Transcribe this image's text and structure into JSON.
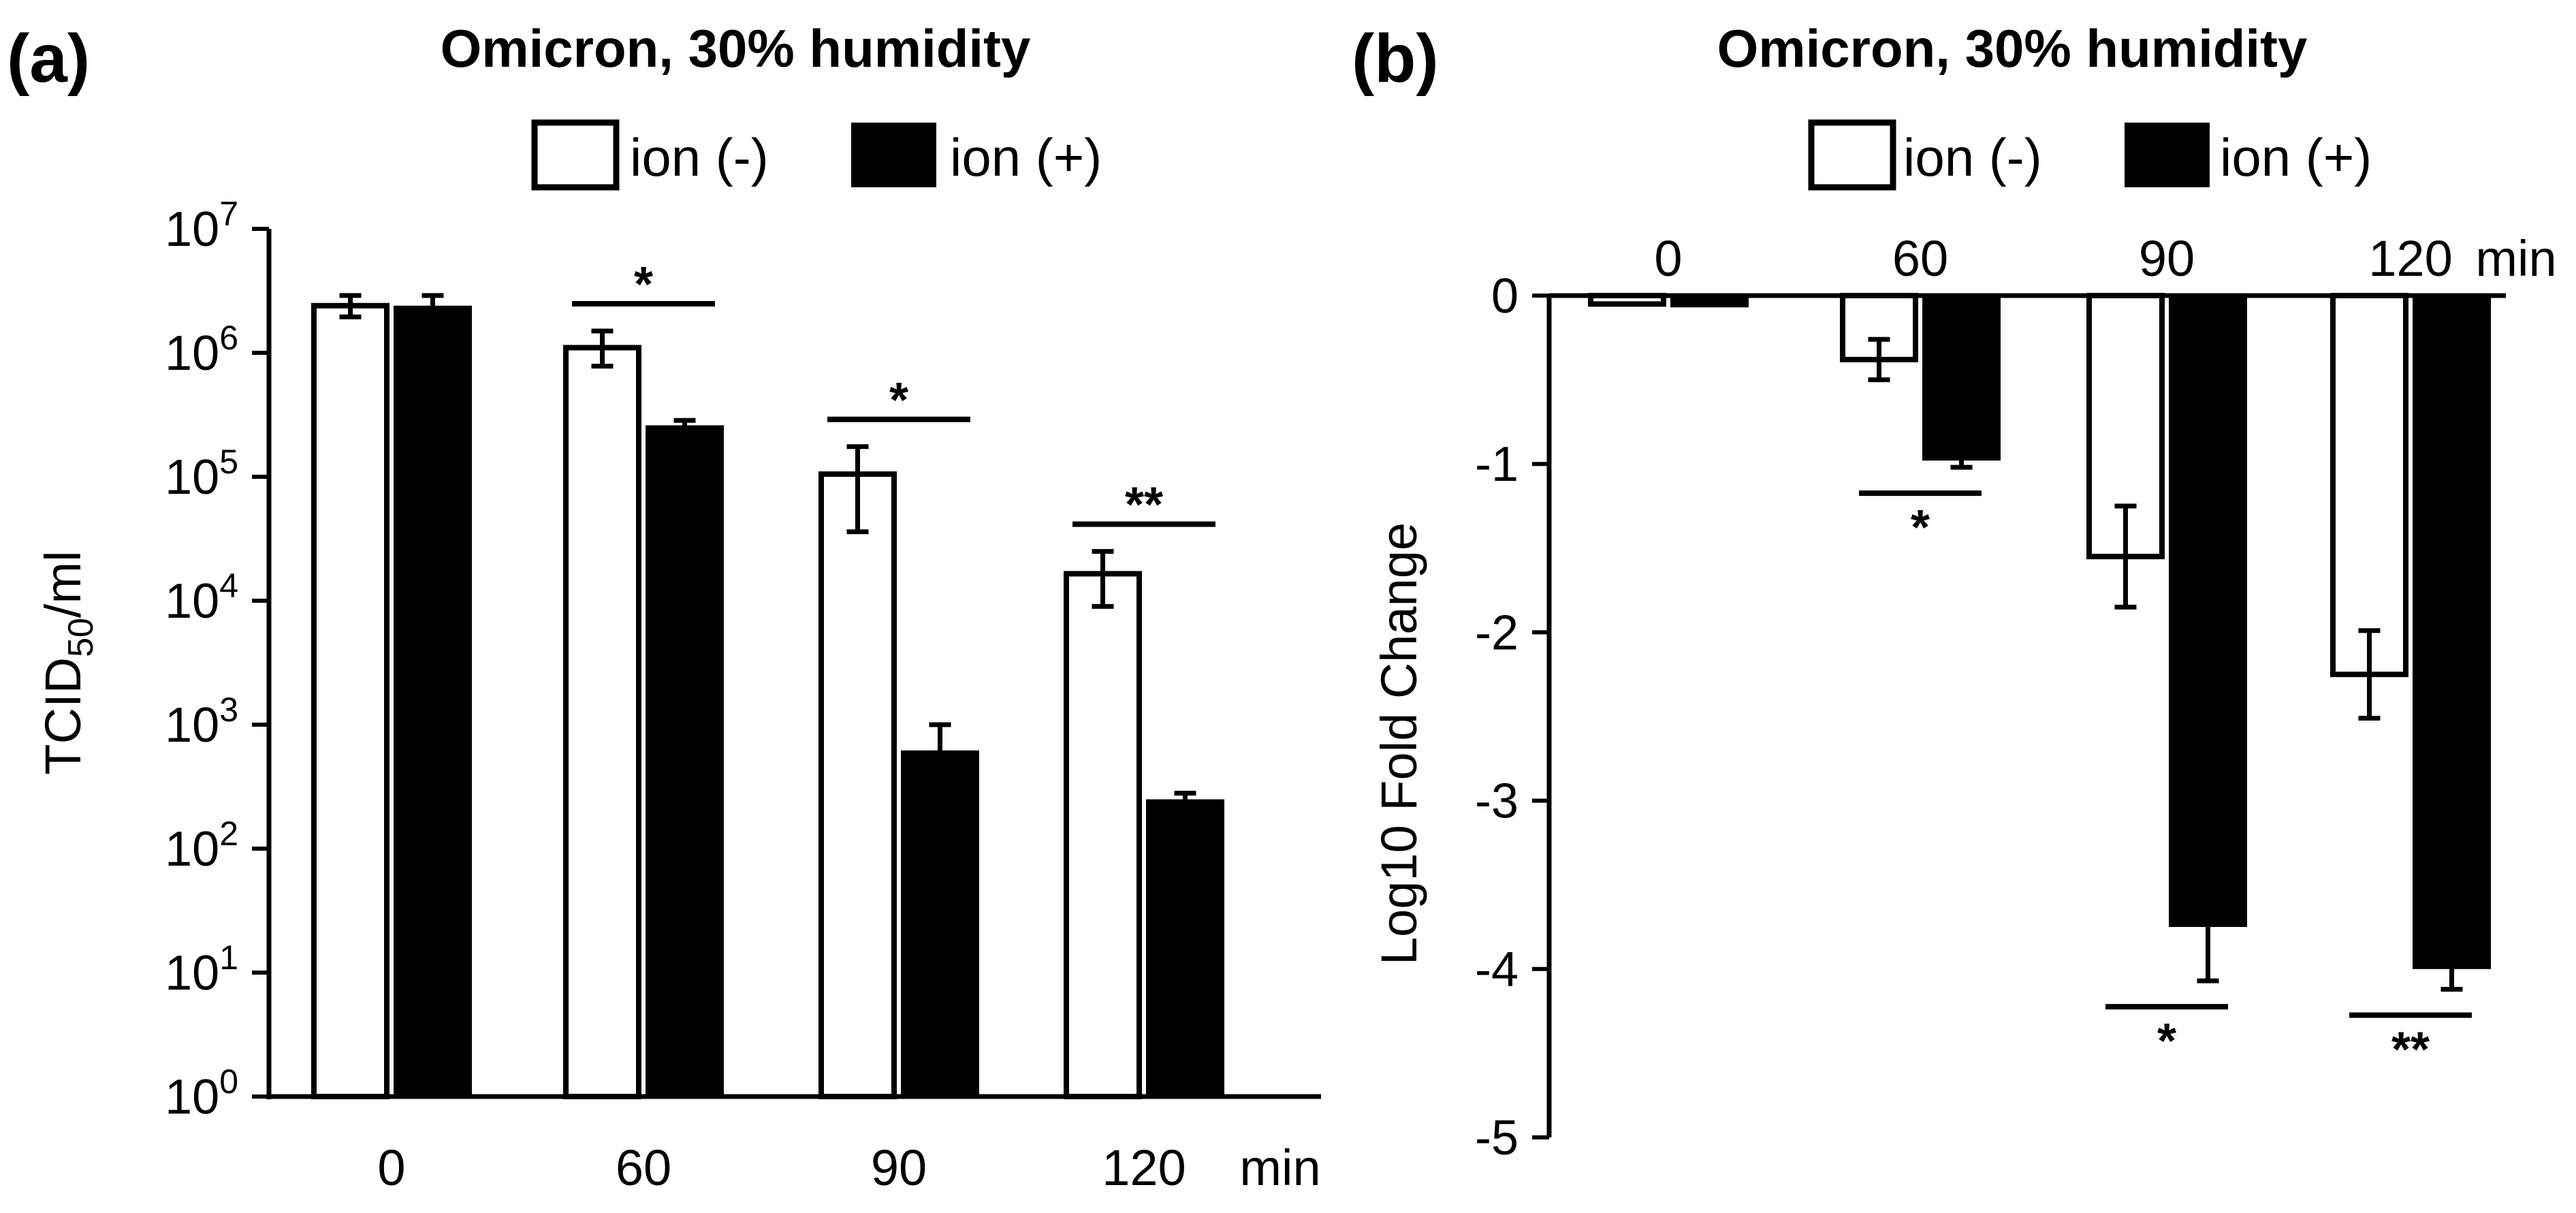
{
  "panels": [
    {
      "label": "(a)",
      "title": "Omicron, 30% humidity",
      "legend": {
        "off_label": "ion (-)",
        "on_label": "ion (+)"
      }
    },
    {
      "label": "(b)",
      "title": "Omicron, 30% humidity",
      "legend": {
        "off_label": "ion (-)",
        "on_label": "ion (+)"
      }
    }
  ],
  "chart_data": [
    {
      "type": "bar",
      "title": "Omicron, 30% humidity",
      "ylabel_main": "TCID",
      "ylabel_sub": "50",
      "ylabel_tail": "/ml",
      "yscale": "log",
      "ylim": [
        1,
        10000000
      ],
      "ytick_base": "10",
      "yticks_exponents": [
        "0",
        "1",
        "2",
        "3",
        "4",
        "5",
        "6",
        "7"
      ],
      "categories": [
        "0",
        "60",
        "90",
        "120"
      ],
      "xunit": "min",
      "series": [
        {
          "name": "ion (-)",
          "values": [
            2400000,
            1100000,
            105000,
            16500
          ],
          "err_low": [
            1950000,
            780000,
            36000,
            9000
          ],
          "err_high": [
            2900000,
            1500000,
            175000,
            25000
          ]
        },
        {
          "name": "ion (+)",
          "values": [
            2400000,
            260000,
            620,
            250
          ],
          "err_low": [
            1950000,
            235000,
            400,
            225
          ],
          "err_high": [
            2900000,
            285000,
            1000,
            280
          ]
        }
      ],
      "significance": [
        "",
        "*",
        "*",
        "**"
      ]
    },
    {
      "type": "bar",
      "title": "Omicron, 30% humidity",
      "ylabel": "Log10 Fold Change",
      "ylim": [
        -5,
        0
      ],
      "yticks": [
        "0",
        "-1",
        "-2",
        "-3",
        "-4",
        "-5"
      ],
      "categories": [
        "0",
        "60",
        "90",
        "120"
      ],
      "xunit": "min",
      "series": [
        {
          "name": "ion (-)",
          "values": [
            -0.05,
            -0.38,
            -1.55,
            -2.25
          ],
          "err": [
            0,
            0.12,
            0.3,
            0.26
          ]
        },
        {
          "name": "ion (+)",
          "values": [
            -0.07,
            -0.98,
            -3.75,
            -4.0
          ],
          "err": [
            0,
            0.04,
            0.32,
            0.12
          ]
        }
      ],
      "significance": [
        "",
        "*",
        "*",
        "**"
      ]
    }
  ]
}
